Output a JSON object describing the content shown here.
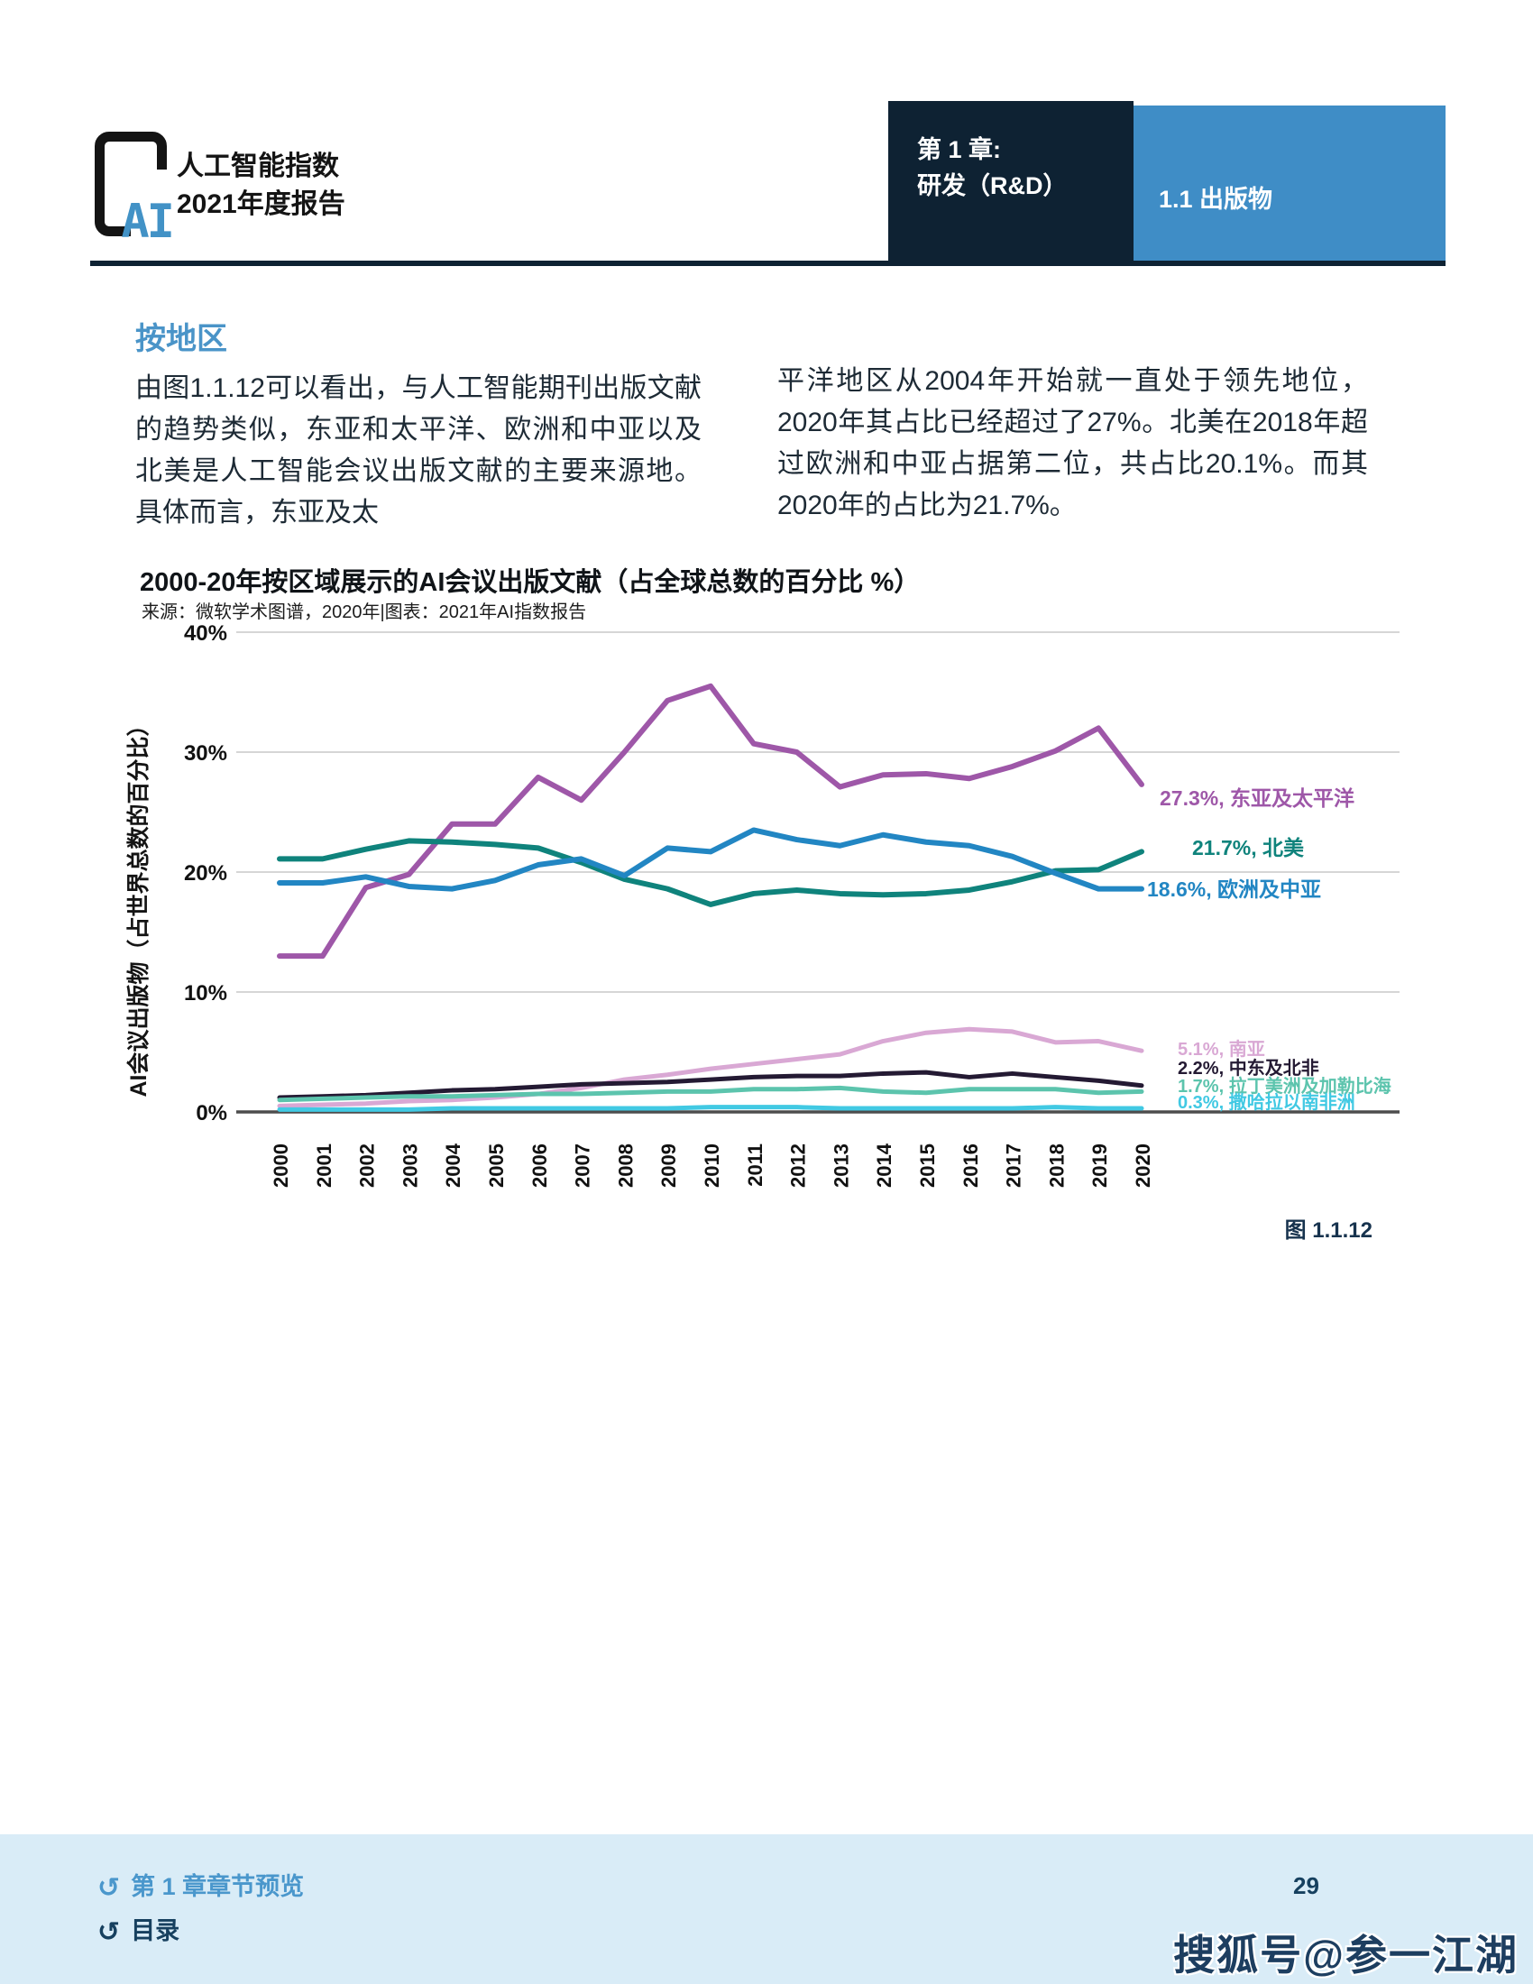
{
  "header": {
    "logo_text": "AI",
    "report_title_line1": "人工智能指数",
    "report_title_line2": "2021年度报告",
    "chapter_label_line1": "第 1 章:",
    "chapter_label_line2": "研发（R&D）",
    "section_label": "1.1 出版物"
  },
  "content": {
    "section_heading": "按地区",
    "paragraph_left": "由图1.1.12可以看出，与人工智能期刊出版文献的趋势类似，东亚和太平洋、欧洲和中亚以及北美是人工智能会议出版文献的主要来源地。具体而言，东亚及太",
    "paragraph_right": "平洋地区从2004年开始就一直处于领先地位，2020年其占比已经超过了27%。北美在2018年超过欧洲和中亚占据第二位，共占比20.1%。而其2020年的占比为21.7%。"
  },
  "chart_data": {
    "type": "line",
    "title": "2000-20年按区域展示的AI会议出版文献（占全球总数的百分比 %）",
    "source": "来源：微软学术图谱，2020年|图表：2021年AI指数报告",
    "ylabel": "AI会议出版物（占世界总数的百分比）",
    "figure_caption": "图 1.1.12",
    "ylim": [
      0,
      40
    ],
    "grid": "horizontal",
    "legend_position": "right-end-labels",
    "yticks": [
      {
        "value": 40,
        "label": "40%"
      },
      {
        "value": 30,
        "label": "30%"
      },
      {
        "value": 20,
        "label": "20%"
      },
      {
        "value": 10,
        "label": "10%"
      },
      {
        "value": 0,
        "label": "0%"
      }
    ],
    "x": [
      2000,
      2001,
      2002,
      2003,
      2004,
      2005,
      2006,
      2007,
      2008,
      2009,
      2010,
      2011,
      2012,
      2013,
      2014,
      2015,
      2016,
      2017,
      2018,
      2019,
      2020
    ],
    "series": [
      {
        "name": "东亚及太平洋",
        "end_label": "27.3%, 东亚及太平洋",
        "color": "#9e57a8",
        "values": [
          13.0,
          13.0,
          18.7,
          19.8,
          24.0,
          24.0,
          27.9,
          26.0,
          30.0,
          34.3,
          35.5,
          30.7,
          30.0,
          27.1,
          28.1,
          28.2,
          27.8,
          28.8,
          30.1,
          32.0,
          27.3
        ]
      },
      {
        "name": "北美",
        "end_label": "21.7%, 北美",
        "color": "#0f837c",
        "values": [
          21.1,
          21.1,
          21.9,
          22.6,
          22.5,
          22.3,
          22.0,
          20.8,
          19.4,
          18.6,
          17.3,
          18.2,
          18.5,
          18.2,
          18.1,
          18.2,
          18.5,
          19.2,
          20.1,
          20.2,
          21.7
        ]
      },
      {
        "name": "欧洲及中亚",
        "end_label": "18.6%, 欧洲及中亚",
        "color": "#2286c3",
        "values": [
          19.1,
          19.1,
          19.6,
          18.8,
          18.6,
          19.3,
          20.6,
          21.1,
          19.7,
          22.0,
          21.7,
          23.5,
          22.7,
          22.2,
          23.1,
          22.5,
          22.2,
          21.3,
          19.9,
          18.6,
          18.6
        ]
      },
      {
        "name": "南亚",
        "end_label": "5.1%, 南亚",
        "color": "#d9a8d4",
        "values": [
          0.5,
          0.6,
          0.7,
          0.9,
          1.0,
          1.2,
          1.5,
          2.0,
          2.7,
          3.1,
          3.6,
          4.0,
          4.4,
          4.8,
          5.9,
          6.6,
          6.9,
          6.7,
          5.8,
          5.9,
          5.1
        ]
      },
      {
        "name": "中东及北非",
        "end_label": "2.2%, 中东及北非",
        "color": "#241a33",
        "values": [
          1.2,
          1.3,
          1.4,
          1.6,
          1.8,
          1.9,
          2.1,
          2.3,
          2.4,
          2.5,
          2.7,
          2.9,
          3.0,
          3.0,
          3.2,
          3.3,
          2.9,
          3.2,
          2.9,
          2.6,
          2.2
        ]
      },
      {
        "name": "拉丁美洲及加勒比海",
        "end_label": "1.7%, 拉丁美洲及加勒比海",
        "color": "#5cc4ad",
        "values": [
          1.0,
          1.1,
          1.2,
          1.3,
          1.3,
          1.4,
          1.5,
          1.5,
          1.6,
          1.7,
          1.7,
          1.9,
          1.9,
          2.0,
          1.7,
          1.6,
          1.9,
          1.9,
          1.9,
          1.6,
          1.7
        ]
      },
      {
        "name": "撒哈拉以南非洲",
        "end_label": "0.3%, 撒哈拉以南非洲",
        "color": "#41c9e3",
        "values": [
          0.2,
          0.2,
          0.2,
          0.2,
          0.3,
          0.3,
          0.3,
          0.3,
          0.3,
          0.3,
          0.4,
          0.4,
          0.4,
          0.3,
          0.3,
          0.3,
          0.3,
          0.3,
          0.4,
          0.3,
          0.3
        ]
      }
    ]
  },
  "footer": {
    "link_chapter_preview": "第 1 章章节预览",
    "link_toc": "目录",
    "page_number": "29",
    "watermark": "搜狐号@参一江湖"
  },
  "colors": {
    "navy": "#0e2233",
    "accent_blue": "#3f8dc6",
    "heading_blue": "#4a94c8",
    "footer_band": "#d9ecf7",
    "gridline": "#c9c9c9",
    "axis": "#4d4d4d"
  }
}
